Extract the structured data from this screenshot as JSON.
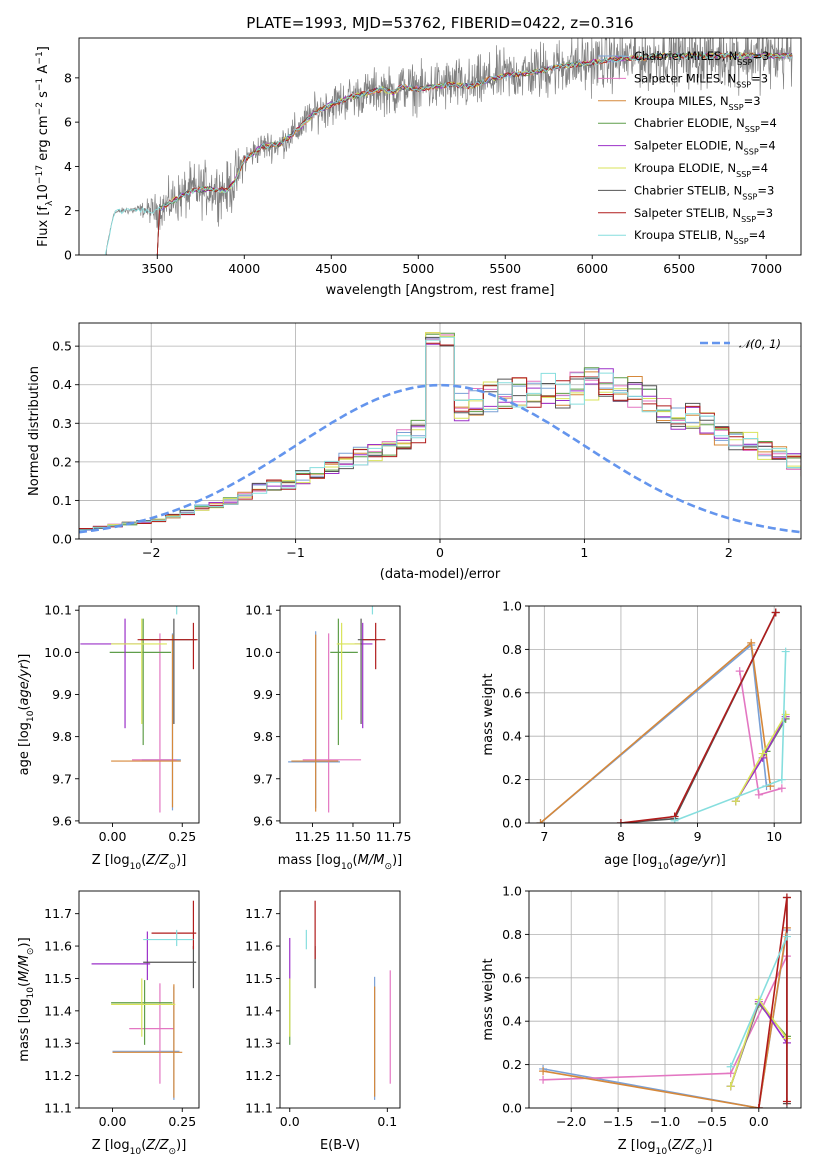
{
  "figure": {
    "title": "PLATE=1993, MJD=53762, FIBERID=0422, z=0.316"
  },
  "models": [
    {
      "name": "Chabrier MILES",
      "nssp": "3",
      "color": "#7aa0d6"
    },
    {
      "name": "Salpeter MILES",
      "nssp": "3",
      "color": "#e377c2"
    },
    {
      "name": "Kroupa MILES",
      "nssp": "3",
      "color": "#d6883a"
    },
    {
      "name": "Chabrier ELODIE",
      "nssp": "4",
      "color": "#5f9e4a"
    },
    {
      "name": "Salpeter ELODIE",
      "nssp": "4",
      "color": "#9b30c8"
    },
    {
      "name": "Kroupa ELODIE",
      "nssp": "4",
      "color": "#d9e35a"
    },
    {
      "name": "Chabrier STELIB",
      "nssp": "3",
      "color": "#555555"
    },
    {
      "name": "Salpeter STELIB",
      "nssp": "3",
      "color": "#b01c1c"
    },
    {
      "name": "Kroupa STELIB",
      "nssp": "4",
      "color": "#86dede"
    }
  ],
  "chart_data": [
    {
      "type": "line",
      "id": "spectrum",
      "xlabel": "wavelength [Angstrom, rest frame]",
      "ylabel": "Flux [f_λ 10^-17 erg cm^-2 s^-1 A^-1]",
      "xlim": [
        3050,
        7200
      ],
      "ylim": [
        0,
        9.8
      ],
      "xticks": [
        3500,
        4000,
        4500,
        5000,
        5500,
        6000,
        6500,
        7000
      ],
      "yticks": [
        0,
        2,
        4,
        6,
        8
      ],
      "grid": false,
      "legend": "top-right",
      "x": [
        3200,
        3250,
        3300,
        3400,
        3500,
        3600,
        3700,
        3800,
        3900,
        3950,
        4000,
        4100,
        4200,
        4300,
        4400,
        4500,
        4600,
        4700,
        4800,
        4860,
        4900,
        5000,
        5100,
        5200,
        5300,
        5400,
        5500,
        5600,
        5700,
        5800,
        5900,
        6000,
        6100,
        6200,
        6300,
        6400,
        6500,
        6600,
        6700,
        6800,
        6900,
        7000,
        7100
      ],
      "model_flux": [
        0.0,
        1.9,
        2.0,
        2.05,
        2.0,
        2.5,
        2.9,
        3.0,
        2.9,
        3.4,
        4.3,
        4.9,
        5.0,
        5.6,
        6.4,
        6.8,
        7.1,
        7.3,
        7.5,
        7.3,
        7.6,
        7.5,
        7.6,
        7.7,
        7.6,
        7.9,
        8.1,
        8.2,
        8.3,
        8.5,
        8.6,
        8.7,
        8.8,
        8.9,
        8.9,
        9.0,
        9.0,
        9.0,
        9.0,
        9.0,
        9.0,
        9.0,
        9.0
      ],
      "noise_sigma": [
        0.0,
        0.1,
        0.1,
        0.2,
        0.6,
        0.8,
        0.9,
        0.9,
        0.9,
        1.0,
        0.5,
        0.5,
        0.5,
        0.6,
        0.6,
        0.7,
        0.7,
        0.7,
        0.8,
        0.8,
        0.8,
        0.8,
        0.9,
        0.9,
        0.9,
        0.9,
        0.9,
        0.9,
        1.0,
        1.0,
        1.0,
        1.0,
        1.0,
        1.0,
        1.0,
        1.0,
        1.0,
        1.1,
        1.1,
        1.1,
        1.1,
        1.1,
        1.1
      ],
      "data_start": 3200,
      "model_start": 3500
    },
    {
      "type": "line",
      "id": "residuals",
      "xlabel": "(data-model)/error",
      "ylabel": "Normed distribution",
      "xlim": [
        -2.5,
        2.5
      ],
      "ylim": [
        0,
        0.56
      ],
      "xticks": [
        -2,
        -1,
        0,
        1,
        2
      ],
      "yticks": [
        0.0,
        0.1,
        0.2,
        0.3,
        0.4,
        0.5
      ],
      "grid": true,
      "legend": "top-right",
      "reference_label": "𝒩(0, 1)",
      "reference_color": "#6495ed",
      "bin_edges_start": -2.5,
      "bin_width": 0.1,
      "base_counts": [
        0.025,
        0.03,
        0.035,
        0.04,
        0.045,
        0.05,
        0.06,
        0.07,
        0.08,
        0.09,
        0.1,
        0.115,
        0.13,
        0.14,
        0.14,
        0.16,
        0.175,
        0.19,
        0.205,
        0.215,
        0.225,
        0.24,
        0.26,
        0.28,
        0.3,
        0.32,
        0.34,
        0.36,
        0.37,
        0.38,
        0.38,
        0.375,
        0.39,
        0.38,
        0.39,
        0.4,
        0.41,
        0.39,
        0.38,
        0.36,
        0.33,
        0.31,
        0.32,
        0.3,
        0.27,
        0.26,
        0.25,
        0.23,
        0.22,
        0.2,
        0.18,
        0.16,
        0.15,
        0.13,
        0.12,
        0.1,
        0.09,
        0.085,
        0.07,
        0.06,
        0.055,
        0.045,
        0.04,
        0.035,
        0.03,
        0.03,
        0.028,
        0.025,
        0.025,
        0.022,
        0.02,
        0.02,
        0.02,
        0.018,
        0.018,
        0.018,
        0.016,
        0.016,
        0.016,
        0.016
      ],
      "peak_note": "Bin at 0.0 reaches ~0.53"
    },
    {
      "type": "scatter",
      "id": "age_vs_Z",
      "xlabel": "Z [log10(Z/Z⊙)]",
      "ylabel": "age  [log10(age/yr)]",
      "xlim": [
        -0.12,
        0.31
      ],
      "ylim": [
        9.595,
        10.11
      ],
      "xticks": [
        0.0,
        0.25
      ],
      "yticks": [
        9.6,
        9.7,
        9.8,
        9.9,
        10.0,
        10.1
      ],
      "points": [
        {
          "model": 0,
          "x": 0.215,
          "y": 9.745,
          "xerr": [
            0.11,
            0.03
          ],
          "yerr": [
            0.12,
            0.3
          ]
        },
        {
          "model": 1,
          "x": 0.17,
          "y": 9.745,
          "xerr": [
            0.1,
            0.06
          ],
          "yerr": [
            0.125,
            0.3
          ]
        },
        {
          "model": 2,
          "x": 0.215,
          "y": 9.742,
          "xerr": [
            0.22,
            0.03
          ],
          "yerr": [
            0.11,
            0.3
          ]
        },
        {
          "model": 3,
          "x": 0.11,
          "y": 10.0,
          "xerr": [
            0.12,
            0.1
          ],
          "yerr": [
            0.22,
            0.08
          ]
        },
        {
          "model": 4,
          "x": 0.045,
          "y": 10.02,
          "xerr": [
            0.16,
            0.06
          ],
          "yerr": [
            0.2,
            0.06
          ]
        },
        {
          "model": 5,
          "x": 0.105,
          "y": 10.02,
          "xerr": [
            0.11,
            0.09
          ],
          "yerr": [
            0.19,
            0.06
          ]
        },
        {
          "model": 6,
          "x": 0.22,
          "y": 10.03,
          "xerr": [
            0.12,
            0.08
          ],
          "yerr": [
            0.2,
            0.05
          ]
        },
        {
          "model": 7,
          "x": 0.29,
          "y": 10.03,
          "xerr": [
            0.2,
            0.015
          ],
          "yerr": [
            0.07,
            0.04
          ]
        },
        {
          "model": 8,
          "x": 0.23,
          "y": 10.13,
          "xerr": [
            0.14,
            0.07
          ],
          "yerr": [
            0.04,
            0.05
          ]
        }
      ]
    },
    {
      "type": "scatter",
      "id": "age_vs_mass",
      "xlabel": "mass [log10(M/M⊙)]",
      "ylabel": "",
      "xlim": [
        11.05,
        11.79
      ],
      "ylim": [
        9.595,
        10.11
      ],
      "xticks": [
        11.25,
        11.5,
        11.75
      ],
      "yticks": [
        9.6,
        9.7,
        9.8,
        9.9,
        10.0,
        10.1
      ],
      "points": [
        {
          "model": 0,
          "x": 11.27,
          "y": 9.74,
          "xerr": [
            0.17,
            0.15
          ],
          "yerr": [
            0.11,
            0.31
          ]
        },
        {
          "model": 1,
          "x": 11.35,
          "y": 9.745,
          "xerr": [
            0.16,
            0.2
          ],
          "yerr": [
            0.125,
            0.3
          ]
        },
        {
          "model": 2,
          "x": 11.27,
          "y": 9.742,
          "xerr": [
            0.15,
            0.14
          ],
          "yerr": [
            0.12,
            0.3
          ]
        },
        {
          "model": 3,
          "x": 11.41,
          "y": 10.0,
          "xerr": [
            0.05,
            0.12
          ],
          "yerr": [
            0.22,
            0.08
          ]
        },
        {
          "model": 4,
          "x": 11.56,
          "y": 10.02,
          "xerr": [
            0.05,
            0.06
          ],
          "yerr": [
            0.2,
            0.05
          ]
        },
        {
          "model": 5,
          "x": 11.43,
          "y": 10.02,
          "xerr": [
            0.03,
            0.12
          ],
          "yerr": [
            0.18,
            0.05
          ]
        },
        {
          "model": 6,
          "x": 11.55,
          "y": 10.03,
          "xerr": [
            0.02,
            0.1
          ],
          "yerr": [
            0.2,
            0.05
          ]
        },
        {
          "model": 7,
          "x": 11.64,
          "y": 10.03,
          "xerr": [
            0.08,
            0.06
          ],
          "yerr": [
            0.07,
            0.04
          ]
        },
        {
          "model": 8,
          "x": 11.62,
          "y": 10.13,
          "xerr": [
            0.02,
            0.03
          ],
          "yerr": [
            0.04,
            0.05
          ]
        }
      ]
    },
    {
      "type": "line",
      "id": "mass_weight_vs_age",
      "xlabel": "age  [log10(age/yr)]",
      "ylabel": "mass weight",
      "xlim": [
        6.8,
        10.35
      ],
      "ylim": [
        0,
        1.0
      ],
      "xticks": [
        7,
        8,
        9,
        10
      ],
      "yticks": [
        0.0,
        0.2,
        0.4,
        0.6,
        0.8,
        1.0
      ],
      "grid": true,
      "series": [
        {
          "model": 0,
          "x": [
            6.95,
            9.7,
            9.9
          ],
          "y": [
            0.0,
            0.82,
            0.17
          ]
        },
        {
          "model": 1,
          "x": [
            9.55,
            9.8,
            10.1
          ],
          "y": [
            0.7,
            0.13,
            0.16
          ]
        },
        {
          "model": 2,
          "x": [
            6.95,
            9.7,
            9.95
          ],
          "y": [
            0.0,
            0.83,
            0.17
          ]
        },
        {
          "model": 3,
          "x": [
            9.5,
            9.9,
            10.15
          ],
          "y": [
            0.1,
            0.33,
            0.48
          ]
        },
        {
          "model": 4,
          "x": [
            9.5,
            9.85,
            10.15
          ],
          "y": [
            0.1,
            0.3,
            0.49
          ]
        },
        {
          "model": 5,
          "x": [
            9.5,
            9.85,
            10.15
          ],
          "y": [
            0.1,
            0.32,
            0.5
          ]
        },
        {
          "model": 6,
          "x": [
            8.0,
            8.7,
            10.02
          ],
          "y": [
            0.0,
            0.02,
            0.97
          ]
        },
        {
          "model": 7,
          "x": [
            8.0,
            8.7,
            10.02
          ],
          "y": [
            0.0,
            0.03,
            0.97
          ]
        },
        {
          "model": 8,
          "x": [
            8.7,
            10.1,
            10.15
          ],
          "y": [
            0.01,
            0.2,
            0.79
          ]
        }
      ]
    },
    {
      "type": "scatter",
      "id": "mass_vs_Z",
      "xlabel": "Z [log10(Z/Z⊙)]",
      "ylabel": "mass [log10(M/M⊙)]",
      "xlim": [
        -0.12,
        0.31
      ],
      "ylim": [
        11.1,
        11.77
      ],
      "xticks": [
        0.0,
        0.25
      ],
      "yticks": [
        11.1,
        11.2,
        11.3,
        11.4,
        11.5,
        11.6,
        11.7
      ],
      "points": [
        {
          "model": 0,
          "x": 0.22,
          "y": 11.275,
          "xerr": [
            0.22,
            0.02
          ],
          "yerr": [
            0.15,
            0.2
          ]
        },
        {
          "model": 1,
          "x": 0.17,
          "y": 11.345,
          "xerr": [
            0.11,
            0.05
          ],
          "yerr": [
            0.17,
            0.14
          ]
        },
        {
          "model": 2,
          "x": 0.22,
          "y": 11.272,
          "xerr": [
            0.22,
            0.03
          ],
          "yerr": [
            0.14,
            0.21
          ]
        },
        {
          "model": 3,
          "x": 0.115,
          "y": 11.425,
          "xerr": [
            0.12,
            0.1
          ],
          "yerr": [
            0.13,
            0.07
          ]
        },
        {
          "model": 4,
          "x": 0.125,
          "y": 11.545,
          "xerr": [
            0.2,
            0.01
          ],
          "yerr": [
            0.05,
            0.1
          ]
        },
        {
          "model": 5,
          "x": 0.105,
          "y": 11.42,
          "xerr": [
            0.11,
            0.12
          ],
          "yerr": [
            0.1,
            0.08
          ]
        },
        {
          "model": 6,
          "x": 0.29,
          "y": 11.55,
          "xerr": [
            0.18,
            0.01
          ],
          "yerr": [
            0.08,
            0.05
          ]
        },
        {
          "model": 7,
          "x": 0.29,
          "y": 11.64,
          "xerr": [
            0.15,
            0.01
          ],
          "yerr": [
            0.05,
            0.1
          ]
        },
        {
          "model": 8,
          "x": 0.23,
          "y": 11.62,
          "xerr": [
            0.12,
            0.06
          ],
          "yerr": [
            0.02,
            0.03
          ]
        }
      ]
    },
    {
      "type": "scatter",
      "id": "mass_vs_ebv",
      "xlabel": "E(B-V)",
      "ylabel": "",
      "xlim": [
        -0.01,
        0.113
      ],
      "ylim": [
        11.1,
        11.77
      ],
      "xticks": [
        0.0,
        0.1
      ],
      "yticks": [
        11.1,
        11.2,
        11.3,
        11.4,
        11.5,
        11.6,
        11.7
      ],
      "points": [
        {
          "model": 0,
          "x": 0.087,
          "y": 11.275,
          "yerr": [
            0.15,
            0.23
          ]
        },
        {
          "model": 1,
          "x": 0.103,
          "y": 11.345,
          "yerr": [
            0.17,
            0.18
          ]
        },
        {
          "model": 2,
          "x": 0.087,
          "y": 11.275,
          "yerr": [
            0.14,
            0.2
          ]
        },
        {
          "model": 3,
          "x": 0.0,
          "y": 11.425,
          "yerr": [
            0.13,
            0.07
          ]
        },
        {
          "model": 4,
          "x": 0.0,
          "y": 11.545,
          "yerr": [
            0.05,
            0.08
          ]
        },
        {
          "model": 5,
          "x": 0.0,
          "y": 11.42,
          "yerr": [
            0.1,
            0.08
          ]
        },
        {
          "model": 6,
          "x": 0.026,
          "y": 11.55,
          "yerr": [
            0.08,
            0.05
          ]
        },
        {
          "model": 7,
          "x": 0.026,
          "y": 11.64,
          "yerr": [
            0.08,
            0.1
          ]
        },
        {
          "model": 8,
          "x": 0.017,
          "y": 11.62,
          "yerr": [
            0.03,
            0.03
          ]
        }
      ]
    },
    {
      "type": "line",
      "id": "mass_weight_vs_Z",
      "xlabel": "Z [log10(Z/Z⊙)]",
      "ylabel": "mass weight",
      "xlim": [
        -2.45,
        0.45
      ],
      "ylim": [
        0,
        1.0
      ],
      "xticks": [
        -2.0,
        -1.5,
        -1.0,
        -0.5,
        0.0
      ],
      "yticks": [
        0.0,
        0.2,
        0.4,
        0.6,
        0.8,
        1.0
      ],
      "grid": true,
      "series": [
        {
          "model": 0,
          "x": [
            -2.3,
            0.0,
            0.3
          ],
          "y": [
            0.18,
            0.0,
            0.82
          ]
        },
        {
          "model": 1,
          "x": [
            -2.3,
            -0.3,
            0.3
          ],
          "y": [
            0.13,
            0.16,
            0.7
          ]
        },
        {
          "model": 2,
          "x": [
            -2.3,
            0.0,
            0.3
          ],
          "y": [
            0.17,
            0.0,
            0.83
          ]
        },
        {
          "model": 3,
          "x": [
            -0.3,
            0.0,
            0.3
          ],
          "y": [
            0.1,
            0.48,
            0.33
          ]
        },
        {
          "model": 4,
          "x": [
            -0.3,
            0.0,
            0.3
          ],
          "y": [
            0.1,
            0.49,
            0.3
          ]
        },
        {
          "model": 5,
          "x": [
            -0.3,
            0.0,
            0.3
          ],
          "y": [
            0.1,
            0.5,
            0.32
          ]
        },
        {
          "model": 6,
          "x": [
            0.3,
            0.3
          ],
          "y": [
            0.02,
            0.97
          ]
        },
        {
          "model": 7,
          "x": [
            0.0,
            0.3,
            0.3
          ],
          "y": [
            0.0,
            0.97,
            0.03
          ]
        },
        {
          "model": 8,
          "x": [
            -0.3,
            0.3
          ],
          "y": [
            0.19,
            0.79
          ]
        }
      ]
    }
  ]
}
